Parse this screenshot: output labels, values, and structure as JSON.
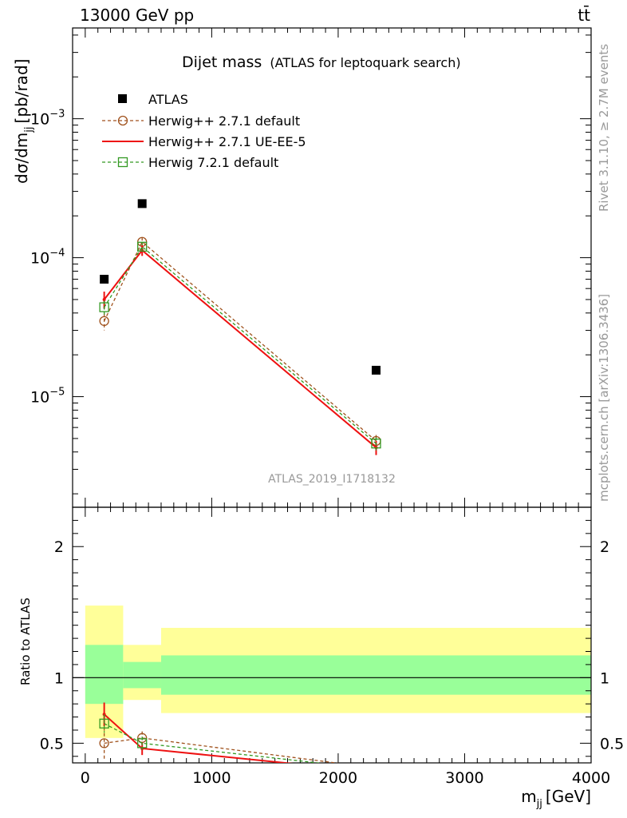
{
  "header": {
    "left": "13000 GeV pp",
    "right": "tt̄"
  },
  "side_text": {
    "rivet": "Rivet 3.1.10, ≥ 2.7M events",
    "mcplots": "mcplots.cern.ch [arXiv:1306.3436]"
  },
  "watermark": "ATLAS_2019_I1718132",
  "title": {
    "main": "Dijet mass",
    "sub": "(ATLAS for leptoquark search)"
  },
  "ylabel_main": "dσ/dm",
  "ylabel_main_sub": "jj",
  "ylabel_main_unit": "[pb/rad]",
  "ylabel_ratio": "Ratio to ATLAS",
  "xlabel": "m",
  "xlabel_sub": "jj",
  "xlabel_unit": "[GeV]",
  "colors": {
    "data": "#000000",
    "herwigpp_default": "#a0521d",
    "herwigpp_ueee5": "#ee1111",
    "herwig7": "#339922",
    "band_inner": "#99ff99",
    "band_outer": "#ffff99"
  },
  "chart_data": {
    "type": "line",
    "xlim": [
      -100,
      4000
    ],
    "ylim_main": [
      1.6e-06,
      0.0045
    ],
    "ylog": true,
    "ylim_ratio": [
      0.35,
      2.3
    ],
    "x_ticks": [
      0,
      1000,
      2000,
      3000,
      4000
    ],
    "x_tick_labels": [
      "0",
      "1000",
      "2000",
      "3000",
      "4000"
    ],
    "y_ticks_main": [
      1e-05,
      0.0001,
      0.001
    ],
    "y_tick_labels_main": [
      "10",
      "10",
      "10"
    ],
    "y_tick_exps_main": [
      "−5",
      "−4",
      "−3"
    ],
    "y_ticks_ratio": [
      0.5,
      1,
      2
    ],
    "y_tick_labels_ratio": [
      "0.5",
      "1",
      "2"
    ],
    "bins": [
      [
        0,
        300
      ],
      [
        300,
        600
      ],
      [
        600,
        4000
      ]
    ],
    "data": {
      "name": "ATLAS",
      "x": [
        150,
        450,
        2300
      ],
      "y": [
        7e-05,
        0.000245,
        1.55e-05
      ]
    },
    "series": [
      {
        "name": "Herwig++ 2.7.1 default",
        "style": "dashed",
        "marker": "circle",
        "x": [
          150,
          450,
          2300
        ],
        "y": [
          3.5e-05,
          0.00013,
          4.8e-06
        ],
        "yerr": [
          5e-06,
          1e-05,
          5e-07
        ],
        "ratio": [
          0.5,
          0.54,
          0.31
        ],
        "ratio_err": [
          0.12,
          0.05,
          0.03
        ]
      },
      {
        "name": "Herwig++ 2.7.1 UE-EE-5",
        "style": "solid",
        "marker": "none",
        "x": [
          150,
          450,
          2300
        ],
        "y": [
          5e-05,
          0.000113,
          4.3e-06
        ],
        "yerr": [
          7e-06,
          1e-05,
          5e-07
        ],
        "ratio": [
          0.72,
          0.46,
          0.28
        ],
        "ratio_err": [
          0.09,
          0.05,
          0.03
        ]
      },
      {
        "name": "Herwig 7.2.1 default",
        "style": "dashed",
        "marker": "square",
        "x": [
          150,
          450,
          2300
        ],
        "y": [
          4.4e-05,
          0.00012,
          4.6e-06
        ],
        "yerr": [
          5e-06,
          1e-05,
          5e-07
        ],
        "ratio": [
          0.65,
          0.5,
          0.3
        ],
        "ratio_err": [
          0.07,
          0.05,
          0.03
        ]
      }
    ],
    "ratio_band": {
      "inner": [
        [
          0.8,
          1.25
        ],
        [
          0.92,
          1.12
        ],
        [
          0.87,
          1.17
        ]
      ],
      "outer": [
        [
          0.54,
          1.55
        ],
        [
          0.83,
          1.25
        ],
        [
          0.73,
          1.38
        ]
      ]
    }
  }
}
